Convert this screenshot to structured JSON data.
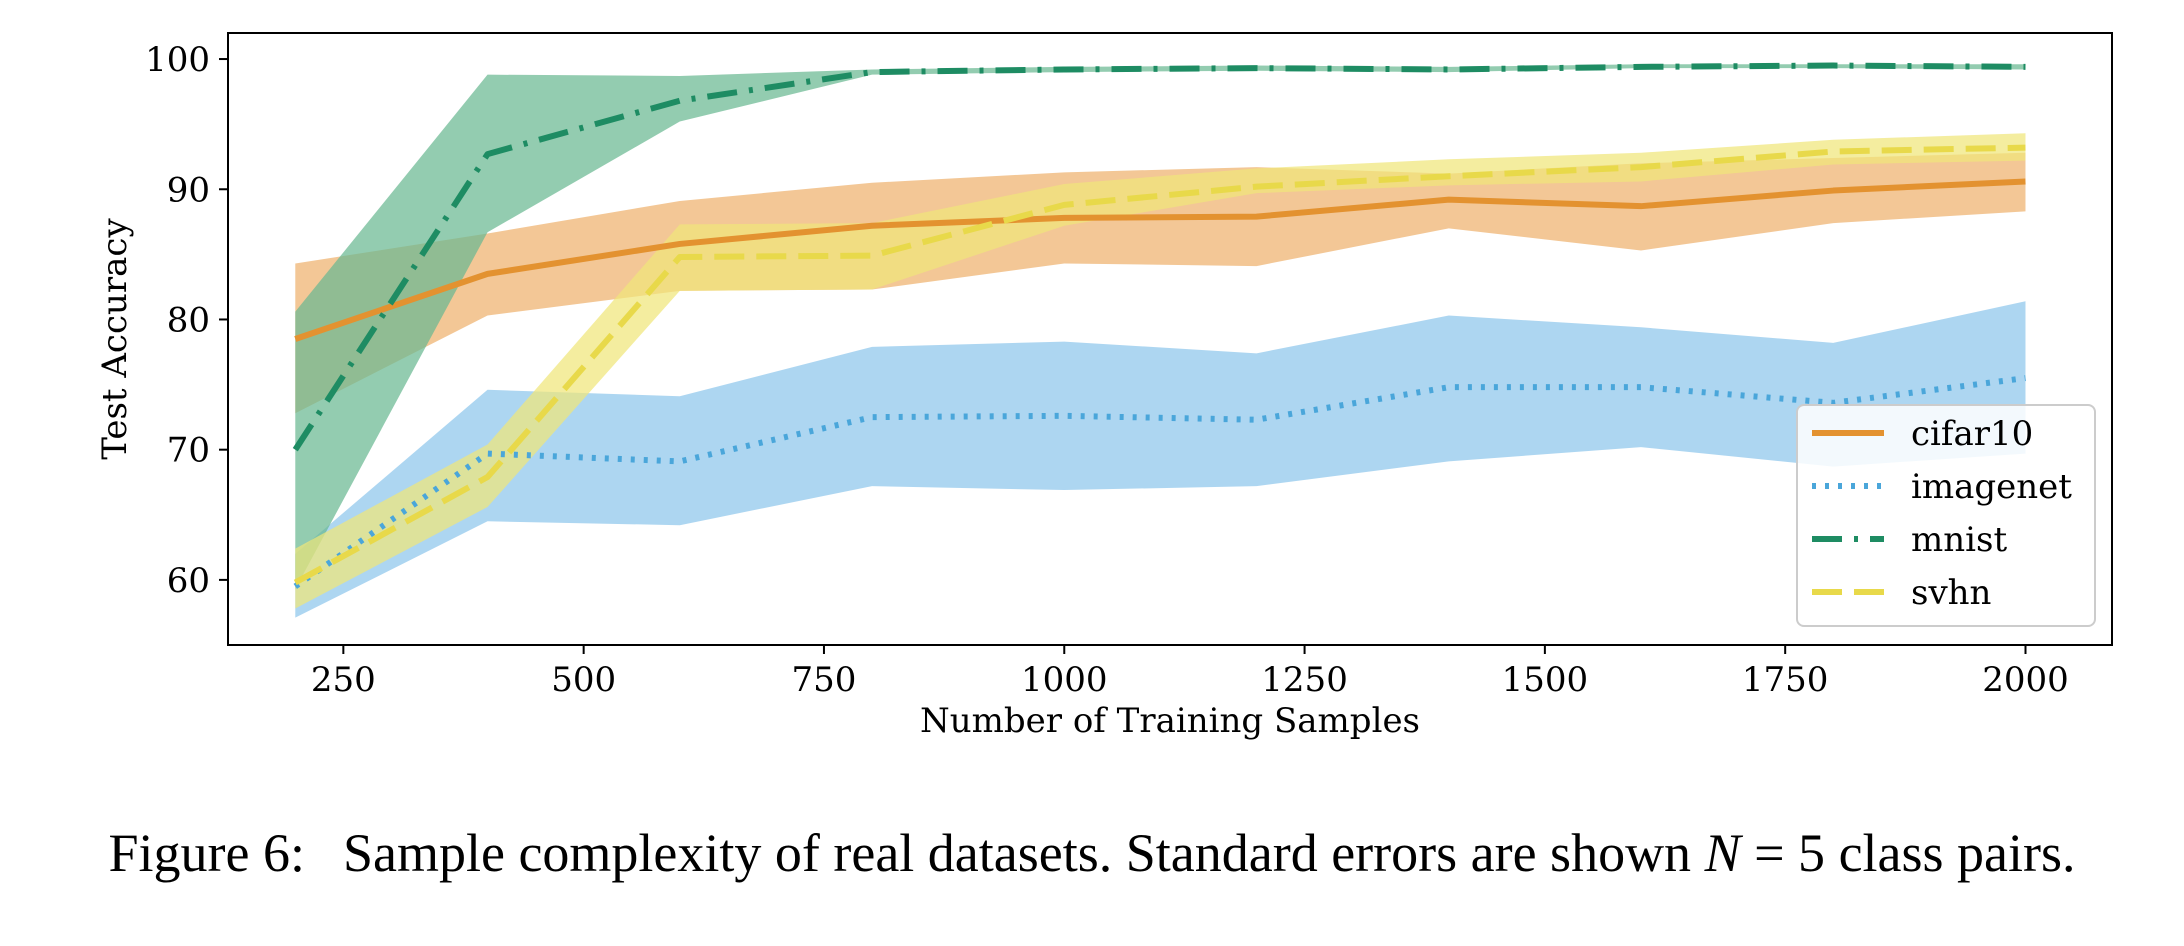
{
  "chart_data": {
    "type": "line",
    "title": "",
    "xlabel": "Number of Training Samples",
    "ylabel": "Test Accuracy",
    "xlim": [
      130,
      2090
    ],
    "ylim": [
      55,
      102
    ],
    "x_ticks": [
      250,
      500,
      750,
      1000,
      1250,
      1500,
      1750,
      2000
    ],
    "y_ticks": [
      60,
      70,
      80,
      90,
      100
    ],
    "grid": false,
    "legend_position": "lower-right",
    "x": [
      200,
      400,
      600,
      800,
      1000,
      1200,
      1400,
      1600,
      1800,
      2000
    ],
    "series": [
      {
        "name": "cifar10",
        "style": "solid",
        "color": "#e39230",
        "fill": "#eeb16e",
        "values": [
          78.5,
          83.5,
          85.8,
          87.2,
          87.8,
          87.9,
          89.2,
          88.7,
          89.9,
          90.6
        ],
        "lower": [
          72.8,
          80.3,
          82.2,
          82.3,
          84.3,
          84.1,
          87.0,
          85.3,
          87.4,
          88.3
        ],
        "upper": [
          84.3,
          86.6,
          89.1,
          90.5,
          91.3,
          91.7,
          91.2,
          92.0,
          92.4,
          92.8
        ]
      },
      {
        "name": "imagenet",
        "style": "dotted",
        "color": "#4aa6da",
        "fill": "#8dc6ec",
        "values": [
          59.5,
          69.7,
          69.1,
          72.5,
          72.6,
          72.3,
          74.8,
          74.8,
          73.6,
          75.5
        ],
        "lower": [
          57.1,
          64.5,
          64.2,
          67.2,
          66.9,
          67.2,
          69.1,
          70.2,
          68.7,
          69.7
        ],
        "upper": [
          62.0,
          74.6,
          74.1,
          77.9,
          78.3,
          77.4,
          80.3,
          79.4,
          78.2,
          81.4
        ]
      },
      {
        "name": "mnist",
        "style": "dashdot",
        "color": "#1e8c63",
        "fill": "#6ab892",
        "values": [
          70.0,
          92.7,
          96.8,
          99.0,
          99.2,
          99.3,
          99.2,
          99.4,
          99.5,
          99.4
        ],
        "lower": [
          59.3,
          86.7,
          95.2,
          98.8,
          99.0,
          99.1,
          99.0,
          99.3,
          99.3,
          99.2
        ],
        "upper": [
          80.6,
          98.8,
          98.7,
          99.2,
          99.4,
          99.5,
          99.4,
          99.6,
          99.6,
          99.6
        ]
      },
      {
        "name": "svhn",
        "style": "dashed",
        "color": "#e8d94a",
        "fill": "#f0e67a",
        "values": [
          59.8,
          67.9,
          84.8,
          84.9,
          88.8,
          90.2,
          91.0,
          91.7,
          92.9,
          93.2
        ],
        "lower": [
          57.8,
          65.6,
          82.2,
          82.3,
          87.2,
          89.7,
          90.3,
          90.6,
          91.9,
          92.2
        ],
        "upper": [
          62.4,
          70.4,
          87.3,
          87.4,
          90.4,
          91.6,
          92.3,
          92.8,
          93.8,
          94.3
        ]
      }
    ]
  },
  "caption": {
    "label": "Figure 6:",
    "text_before": "Sample complexity of real datasets. Standard errors are shown ",
    "math_var": "N",
    "math_rest": " = 5",
    "text_after": " class pairs."
  }
}
